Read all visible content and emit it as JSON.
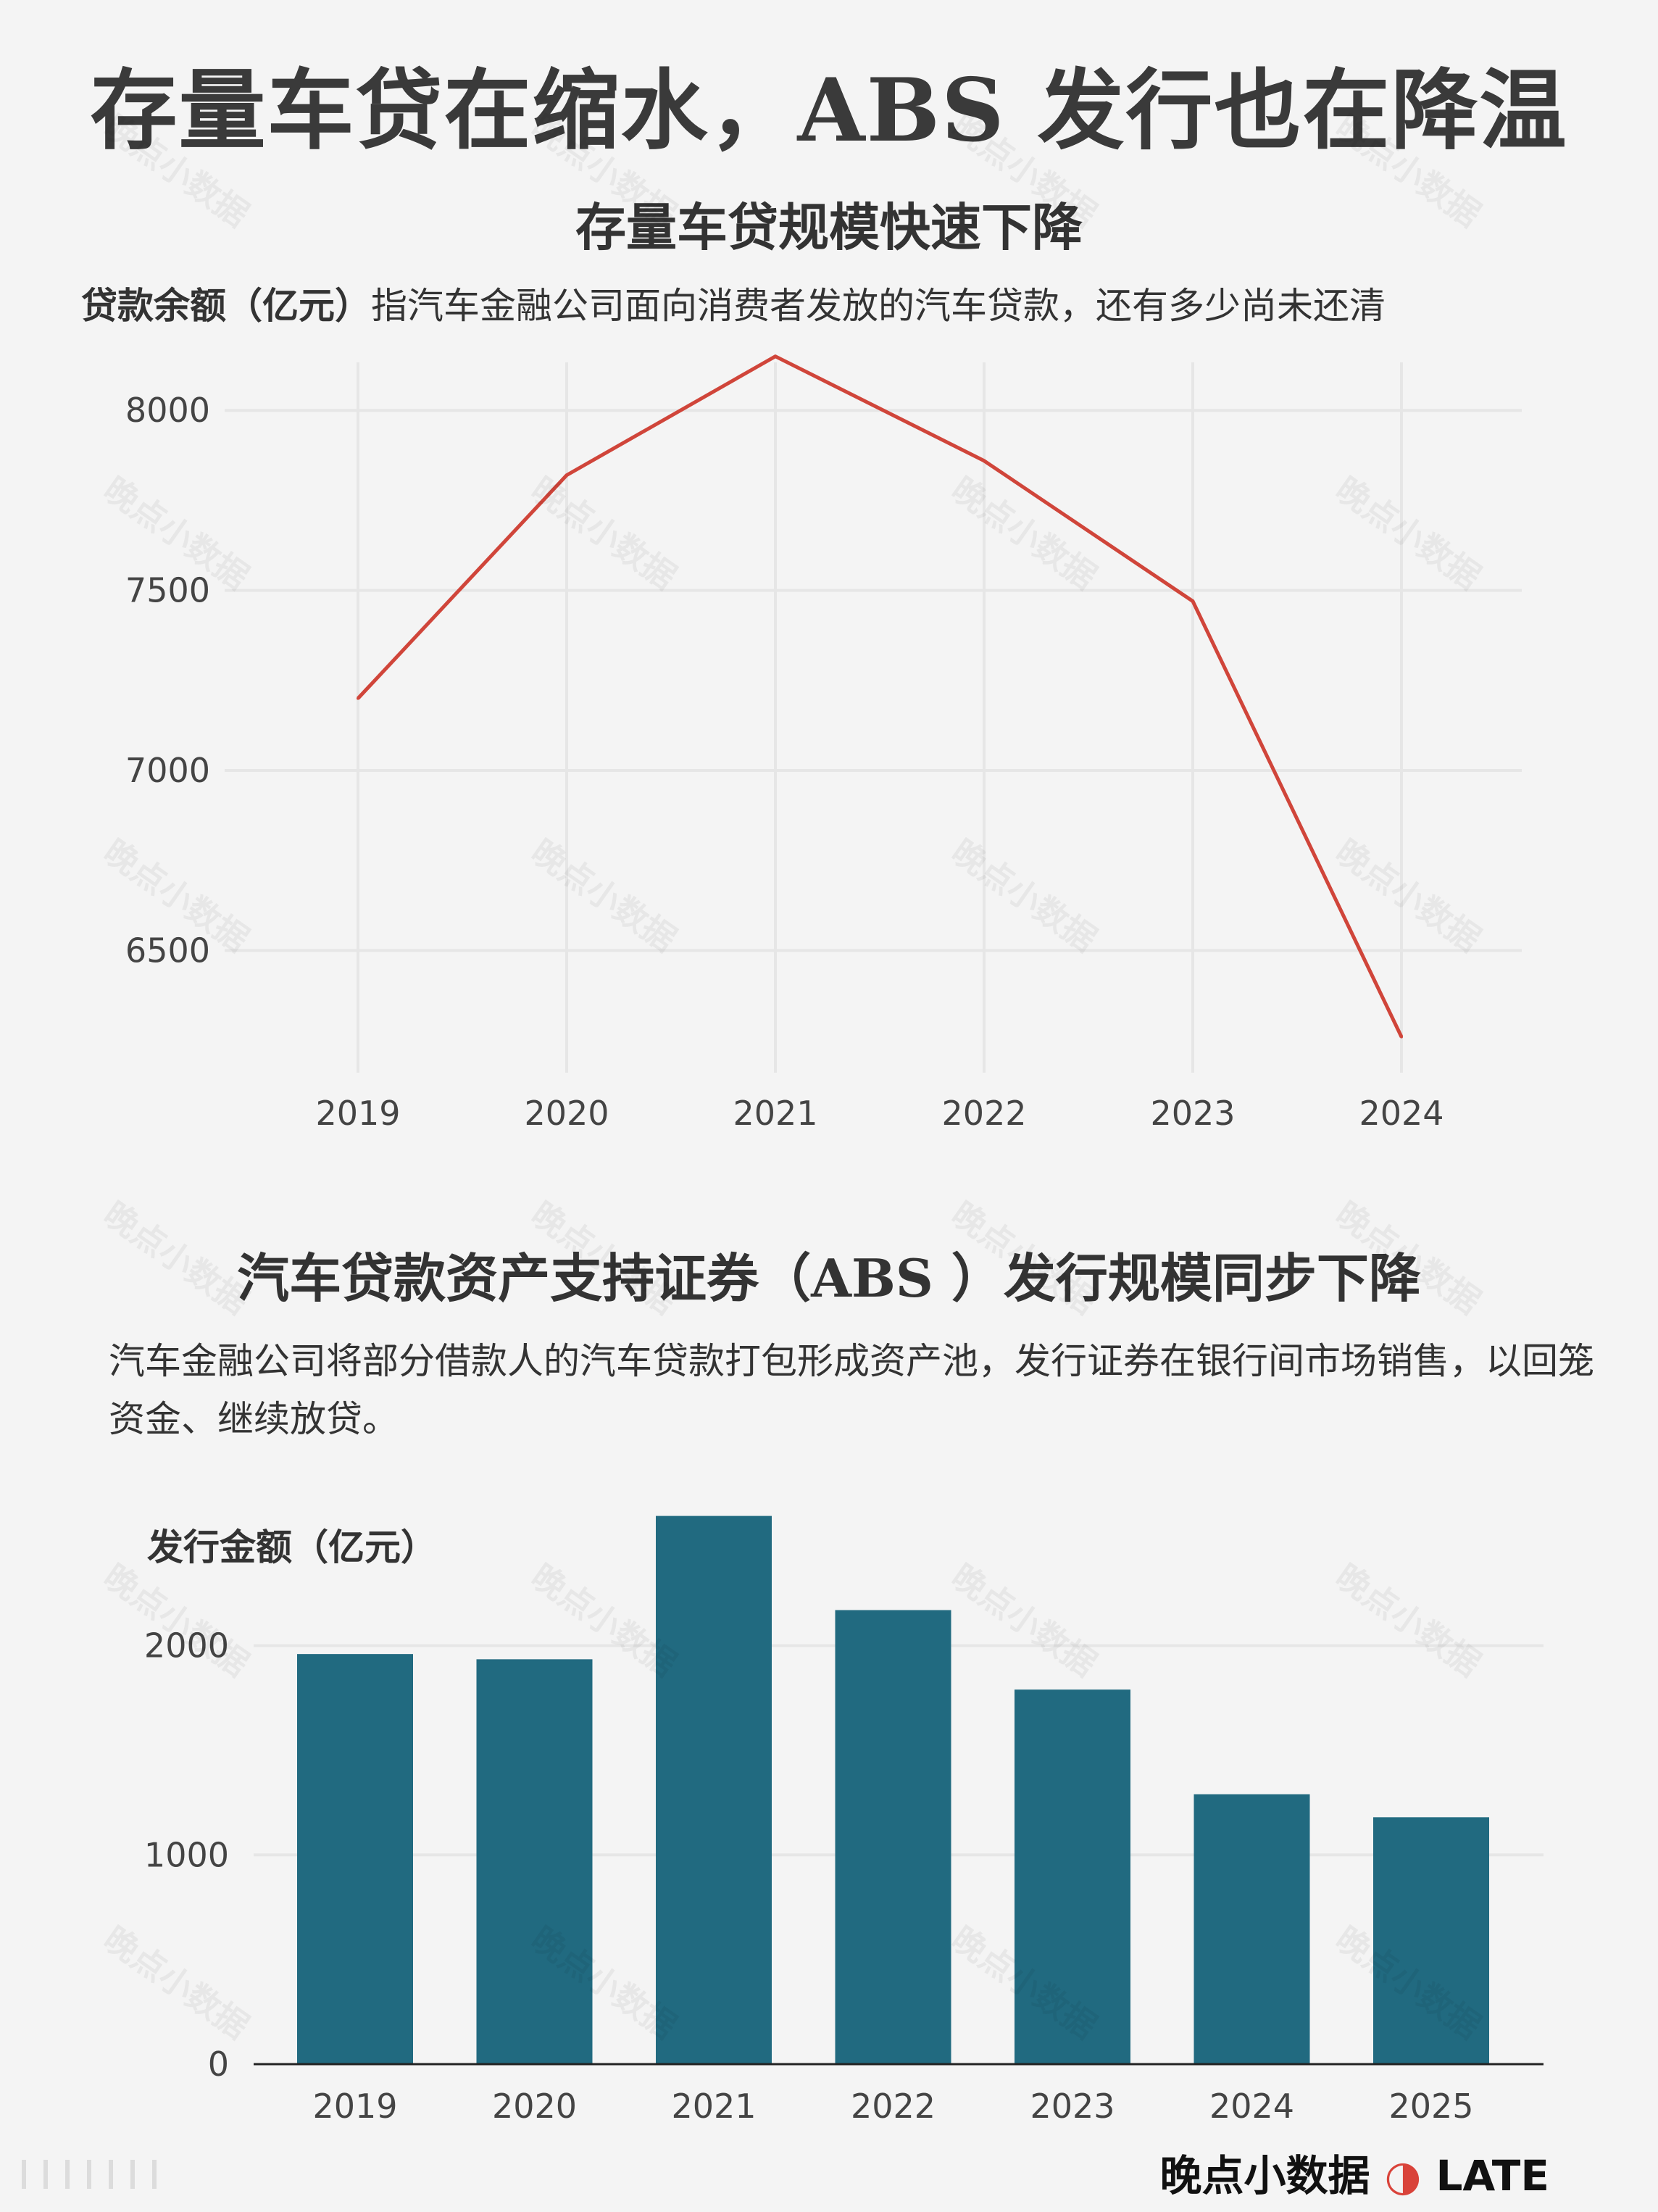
{
  "page": {
    "title": "存量车贷在缩水，ABS 发行也在降温",
    "watermark": "晚点小数据",
    "brand": "晚点小数据",
    "brand_suffix": "LATE"
  },
  "line_chart": {
    "title": "存量车贷规模快速下降",
    "desc_bold": "贷款余额（亿元）",
    "desc_rest": "指汽车金融公司面向消费者发放的汽车贷款，还有多少尚未还清"
  },
  "bar_chart": {
    "title": "汽车贷款资产支持证券（ABS ）发行规模同步下降",
    "desc": "汽车金融公司将部分借款人的汽车贷款打包形成资产池，发行证券在银行间市场销售，以回笼资金、继续放贷。"
  },
  "colors": {
    "line": "#d0453a",
    "bar": "#216a80",
    "grid": "#e6e6e6"
  },
  "chart_data": [
    {
      "type": "line",
      "title": "存量车贷规模快速下降",
      "ylabel": "贷款余额（亿元）",
      "x": [
        "2019",
        "2020",
        "2021",
        "2022",
        "2023",
        "2024"
      ],
      "values": [
        7200,
        7820,
        8150,
        7860,
        7470,
        6260
      ],
      "yticks": [
        6500,
        7000,
        7500,
        8000
      ],
      "ylim": [
        6200,
        8200
      ],
      "grid": true
    },
    {
      "type": "bar",
      "title": "汽车贷款资产支持证券（ABS ）发行规模同步下降",
      "ylabel": "发行金额（亿元）",
      "categories": [
        "2019",
        "2020",
        "2021",
        "2022",
        "2023",
        "2024",
        "2025"
      ],
      "values": [
        1960,
        1935,
        2620,
        2170,
        1790,
        1290,
        1180
      ],
      "yticks": [
        0,
        1000,
        2000
      ],
      "ylim": [
        0,
        2700
      ],
      "grid": true
    }
  ]
}
